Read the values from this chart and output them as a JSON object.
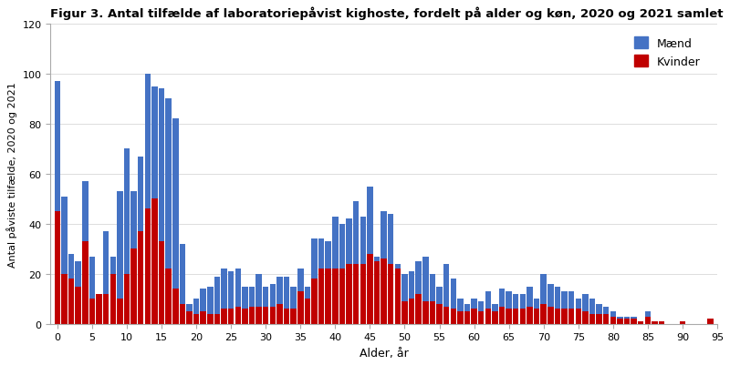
{
  "title": "Figur 3. Antal tilfælde af laboratoriepåvist kighoste, fordelt på alder og køn, 2020 og 2021 samlet",
  "xlabel": "Alder, år",
  "ylabel": "Antal påviste tilfælde, 2020 og 2021",
  "legend_maend": "Mænd",
  "legend_kvinder": "Kvinder",
  "color_maend": "#4472C4",
  "color_kvinder": "#C00000",
  "ylim": [
    0,
    120
  ],
  "yticks": [
    0,
    20,
    40,
    60,
    80,
    100,
    120
  ],
  "xticks": [
    0,
    5,
    10,
    15,
    20,
    25,
    30,
    35,
    40,
    45,
    50,
    55,
    60,
    65,
    70,
    75,
    80,
    85,
    90,
    95
  ],
  "ages": [
    0,
    1,
    2,
    3,
    4,
    5,
    6,
    7,
    8,
    9,
    10,
    11,
    12,
    13,
    14,
    15,
    16,
    17,
    18,
    19,
    20,
    21,
    22,
    23,
    24,
    25,
    26,
    27,
    28,
    29,
    30,
    31,
    32,
    33,
    34,
    35,
    36,
    37,
    38,
    39,
    40,
    41,
    42,
    43,
    44,
    45,
    46,
    47,
    48,
    49,
    50,
    51,
    52,
    53,
    54,
    55,
    56,
    57,
    58,
    59,
    60,
    61,
    62,
    63,
    64,
    65,
    66,
    67,
    68,
    69,
    70,
    71,
    72,
    73,
    74,
    75,
    76,
    77,
    78,
    79,
    80,
    81,
    82,
    83,
    84,
    85,
    86,
    87,
    88,
    89,
    90,
    91,
    92,
    93,
    94
  ],
  "kvinder": [
    45,
    20,
    18,
    15,
    33,
    10,
    12,
    12,
    20,
    10,
    20,
    30,
    37,
    46,
    50,
    33,
    22,
    14,
    8,
    5,
    4,
    5,
    4,
    4,
    6,
    6,
    7,
    6,
    7,
    7,
    7,
    7,
    8,
    6,
    6,
    13,
    10,
    18,
    22,
    22,
    22,
    22,
    24,
    24,
    24,
    28,
    25,
    26,
    24,
    22,
    9,
    10,
    12,
    9,
    9,
    8,
    7,
    6,
    5,
    5,
    6,
    5,
    6,
    5,
    7,
    6,
    6,
    6,
    7,
    6,
    8,
    7,
    6,
    6,
    6,
    6,
    5,
    4,
    4,
    4,
    3,
    2,
    2,
    2,
    1,
    3,
    1,
    1,
    0,
    0,
    1,
    0,
    0,
    0,
    2
  ],
  "maend_only": [
    52,
    31,
    10,
    10,
    24,
    17,
    0,
    25,
    7,
    43,
    50,
    23,
    30,
    54,
    45,
    61,
    68,
    68,
    24,
    3,
    6,
    9,
    11,
    15,
    16,
    15,
    15,
    9,
    8,
    13,
    8,
    9,
    11,
    13,
    9,
    9,
    5,
    16,
    12,
    11,
    21,
    18,
    18,
    25,
    19,
    27,
    2,
    19,
    20,
    2,
    11,
    11,
    13,
    18,
    11,
    7,
    17,
    12,
    5,
    3,
    4,
    4,
    7,
    3,
    7,
    7,
    6,
    6,
    8,
    4,
    12,
    9,
    9,
    7,
    7,
    4,
    7,
    6,
    4,
    3,
    2,
    1,
    1,
    1,
    0,
    2,
    0,
    0,
    0,
    0,
    0,
    0,
    0,
    0,
    0
  ]
}
